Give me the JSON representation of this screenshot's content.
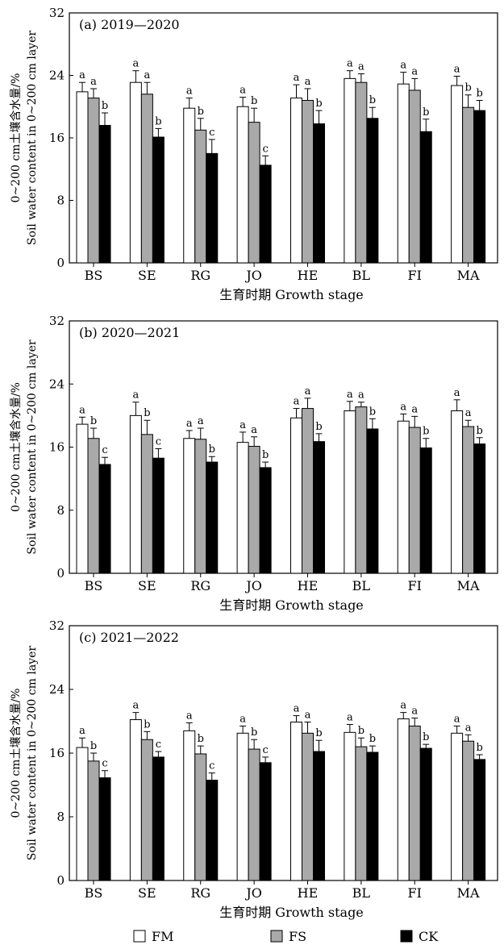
{
  "legend": [
    {
      "name": "FM",
      "color": "#ffffff"
    },
    {
      "name": "FS",
      "color": "#a9a9a9"
    },
    {
      "name": "CK",
      "color": "#000000"
    }
  ],
  "chart_data": [
    {
      "type": "bar",
      "title": "(a) 2019—2020",
      "xlabel": "生育时期 Growth stage",
      "ylabel_cn": "0~200 cm土壤含水量/%",
      "ylabel_en": "Soil water content in 0~200 cm layer",
      "ylim": [
        0,
        32
      ],
      "yticks": [
        0,
        8,
        16,
        24,
        32
      ],
      "categories": [
        "BS",
        "SE",
        "RG",
        "JO",
        "HE",
        "BL",
        "FI",
        "MA"
      ],
      "series": [
        {
          "name": "FM",
          "values": [
            21.9,
            23.1,
            19.8,
            20.0,
            21.1,
            23.6,
            22.9,
            22.7
          ],
          "errors": [
            1.2,
            1.5,
            1.3,
            1.2,
            1.7,
            1.0,
            1.5,
            1.2
          ],
          "labels": [
            "a",
            "a",
            "a",
            "a",
            "a",
            "a",
            "a",
            "a"
          ]
        },
        {
          "name": "FS",
          "values": [
            21.1,
            21.6,
            17.0,
            18.0,
            20.8,
            23.1,
            22.1,
            19.9
          ],
          "errors": [
            1.2,
            1.5,
            1.5,
            1.8,
            1.5,
            1.1,
            1.5,
            1.6
          ],
          "labels": [
            "a",
            "a",
            "b",
            "b",
            "a",
            "a",
            "a",
            "b"
          ]
        },
        {
          "name": "CK",
          "values": [
            17.6,
            16.1,
            14.0,
            12.5,
            17.8,
            18.5,
            16.8,
            19.5
          ],
          "errors": [
            1.6,
            1.1,
            1.8,
            1.2,
            1.7,
            1.4,
            1.6,
            1.3
          ],
          "labels": [
            "b",
            "b",
            "c",
            "c",
            "b",
            "b",
            "b",
            "b"
          ]
        }
      ]
    },
    {
      "type": "bar",
      "title": "(b) 2020—2021",
      "xlabel": "生育时期 Growth stage",
      "ylabel_cn": "0~200 cm土壤含水量/%",
      "ylabel_en": "Soil water content in 0~200 cm layer",
      "ylim": [
        0,
        32
      ],
      "yticks": [
        0,
        8,
        16,
        24,
        32
      ],
      "categories": [
        "BS",
        "SE",
        "RG",
        "JO",
        "HE",
        "BL",
        "FI",
        "MA"
      ],
      "series": [
        {
          "name": "FM",
          "values": [
            18.9,
            20.0,
            17.1,
            16.6,
            19.7,
            20.6,
            19.3,
            20.6
          ],
          "errors": [
            0.9,
            1.7,
            1.0,
            1.3,
            1.2,
            1.2,
            0.9,
            1.4
          ],
          "labels": [
            "a",
            "a",
            "a",
            "a",
            "a",
            "a",
            "a",
            "a"
          ]
        },
        {
          "name": "FS",
          "values": [
            17.1,
            17.6,
            17.0,
            16.1,
            20.9,
            21.1,
            18.5,
            18.6
          ],
          "errors": [
            1.3,
            1.8,
            1.4,
            1.2,
            1.3,
            0.6,
            1.4,
            0.8
          ],
          "labels": [
            "b",
            "b",
            "a",
            "a",
            "a",
            "a",
            "a",
            "a"
          ]
        },
        {
          "name": "CK",
          "values": [
            13.8,
            14.6,
            14.1,
            13.4,
            16.7,
            18.3,
            15.9,
            16.4
          ],
          "errors": [
            0.9,
            1.2,
            0.7,
            0.7,
            1.0,
            1.3,
            1.2,
            0.8
          ],
          "labels": [
            "c",
            "c",
            "b",
            "b",
            "b",
            "b",
            "b",
            "b"
          ]
        }
      ]
    },
    {
      "type": "bar",
      "title": "(c) 2021—2022",
      "xlabel": "生育时期 Growth stage",
      "ylabel_cn": "0~200 cm土壤含水量/%",
      "ylabel_en": "Soil water content in 0~200 cm layer",
      "ylim": [
        0,
        32
      ],
      "yticks": [
        0,
        8,
        16,
        24,
        32
      ],
      "categories": [
        "BS",
        "SE",
        "RG",
        "JO",
        "HE",
        "BL",
        "FI",
        "MA"
      ],
      "series": [
        {
          "name": "FM",
          "values": [
            16.7,
            20.2,
            18.8,
            18.5,
            19.9,
            18.6,
            20.3,
            18.5
          ],
          "errors": [
            1.2,
            0.9,
            1.0,
            0.9,
            0.8,
            1.0,
            0.8,
            0.9
          ],
          "labels": [
            "a",
            "a",
            "a",
            "a",
            "a",
            "a",
            "a",
            "a"
          ]
        },
        {
          "name": "FS",
          "values": [
            15.0,
            17.7,
            15.9,
            16.5,
            18.5,
            16.8,
            19.4,
            17.5
          ],
          "errors": [
            1.0,
            1.0,
            1.0,
            1.2,
            1.4,
            1.1,
            1.0,
            0.8
          ],
          "labels": [
            "b",
            "b",
            "b",
            "b",
            "a",
            "b",
            "a",
            "a"
          ]
        },
        {
          "name": "CK",
          "values": [
            12.9,
            15.5,
            12.6,
            14.8,
            16.2,
            16.1,
            16.6,
            15.2
          ],
          "errors": [
            0.9,
            0.7,
            0.9,
            0.7,
            1.4,
            0.8,
            0.5,
            0.6
          ],
          "labels": [
            "c",
            "c",
            "c",
            "c",
            "b",
            "b",
            "b",
            "b"
          ]
        }
      ]
    }
  ]
}
